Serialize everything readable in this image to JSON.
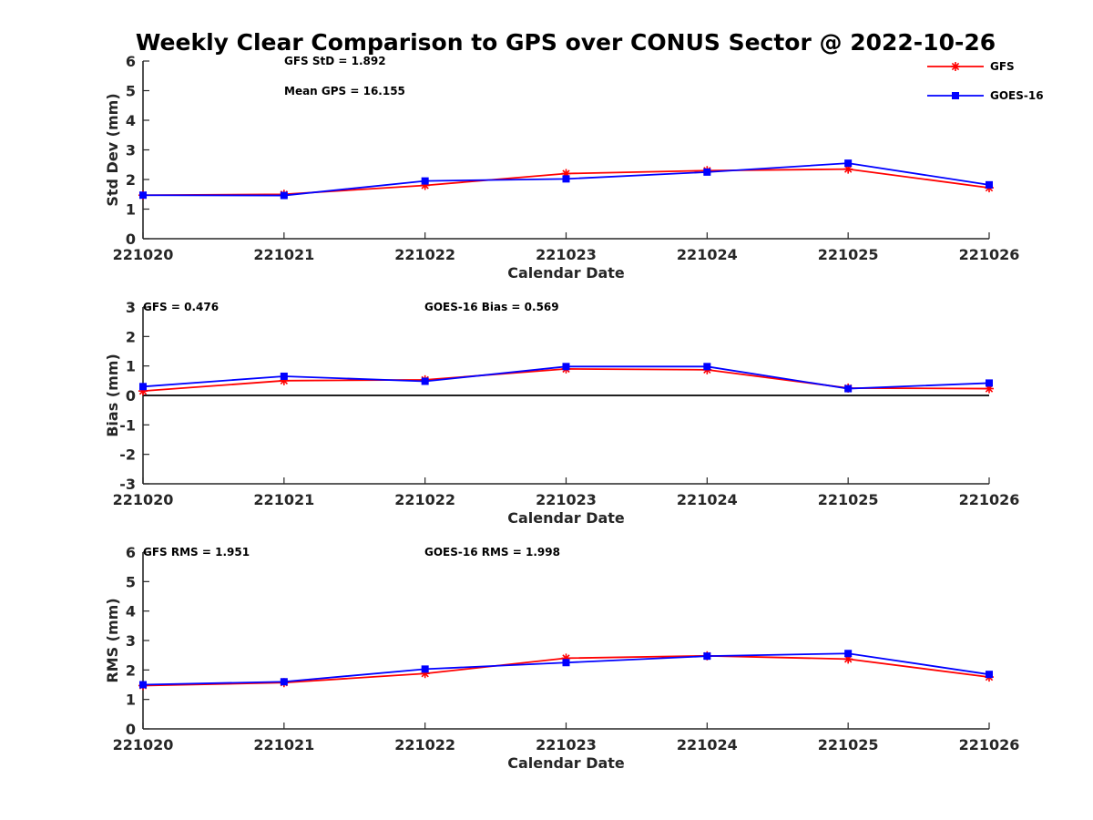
{
  "chart_data": {
    "type": "line",
    "title": "Weekly Clear Comparison to GPS over CONUS Sector @ 2022-10-26",
    "legend": {
      "placement": "top-right",
      "entries": [
        {
          "name": "GFS",
          "color": "#ff0000",
          "marker": "asterisk"
        },
        {
          "name": "GOES-16",
          "color": "#0000ff",
          "marker": "square"
        }
      ]
    },
    "panels": [
      {
        "id": "stddev",
        "ylabel": "Std Dev (mm)",
        "xlabel": "Calendar Date",
        "ylim": [
          0,
          6
        ],
        "yticks": [
          "0",
          "1",
          "2",
          "3",
          "4",
          "5",
          "6"
        ],
        "categories": [
          "221020",
          "221021",
          "221022",
          "221023",
          "221024",
          "221025",
          "221026"
        ],
        "annotations": [
          "GFS StD = 1.892",
          "Mean GPS = 16.155"
        ],
        "series": [
          {
            "name": "GFS",
            "color": "#ff0000",
            "values": [
              1.47,
              1.5,
              1.8,
              2.2,
              2.3,
              2.35,
              1.72
            ]
          },
          {
            "name": "GOES-16",
            "color": "#0000ff",
            "values": [
              1.47,
              1.46,
              1.95,
              2.02,
              2.25,
              2.55,
              1.82
            ]
          }
        ]
      },
      {
        "id": "bias",
        "ylabel": "Bias (mm)",
        "xlabel": "Calendar Date",
        "ylim": [
          -3,
          3
        ],
        "yticks": [
          "-3",
          "-2",
          "-1",
          "0",
          "1",
          "2",
          "3"
        ],
        "categories": [
          "221020",
          "221021",
          "221022",
          "221023",
          "221024",
          "221025",
          "221026"
        ],
        "annotations": [
          "GFS = 0.476",
          "GOES-16 Bias  = 0.569"
        ],
        "zero_line": true,
        "series": [
          {
            "name": "GFS",
            "color": "#ff0000",
            "values": [
              0.15,
              0.5,
              0.53,
              0.9,
              0.87,
              0.25,
              0.23
            ]
          },
          {
            "name": "GOES-16",
            "color": "#0000ff",
            "values": [
              0.3,
              0.65,
              0.48,
              0.98,
              0.98,
              0.23,
              0.42
            ]
          }
        ]
      },
      {
        "id": "rms",
        "ylabel": "RMS (mm)",
        "xlabel": "Calendar Date",
        "ylim": [
          0,
          6
        ],
        "yticks": [
          "0",
          "1",
          "2",
          "3",
          "4",
          "5",
          "6"
        ],
        "categories": [
          "221020",
          "221021",
          "221022",
          "221023",
          "221024",
          "221025",
          "221026"
        ],
        "annotations": [
          "GFS RMS = 1.951",
          "GOES-16 RMS = 1.998"
        ],
        "series": [
          {
            "name": "GFS",
            "color": "#ff0000",
            "values": [
              1.47,
              1.57,
              1.88,
              2.4,
              2.48,
              2.37,
              1.76
            ]
          },
          {
            "name": "GOES-16",
            "color": "#0000ff",
            "values": [
              1.5,
              1.6,
              2.03,
              2.25,
              2.47,
              2.56,
              1.85
            ]
          }
        ]
      }
    ]
  }
}
